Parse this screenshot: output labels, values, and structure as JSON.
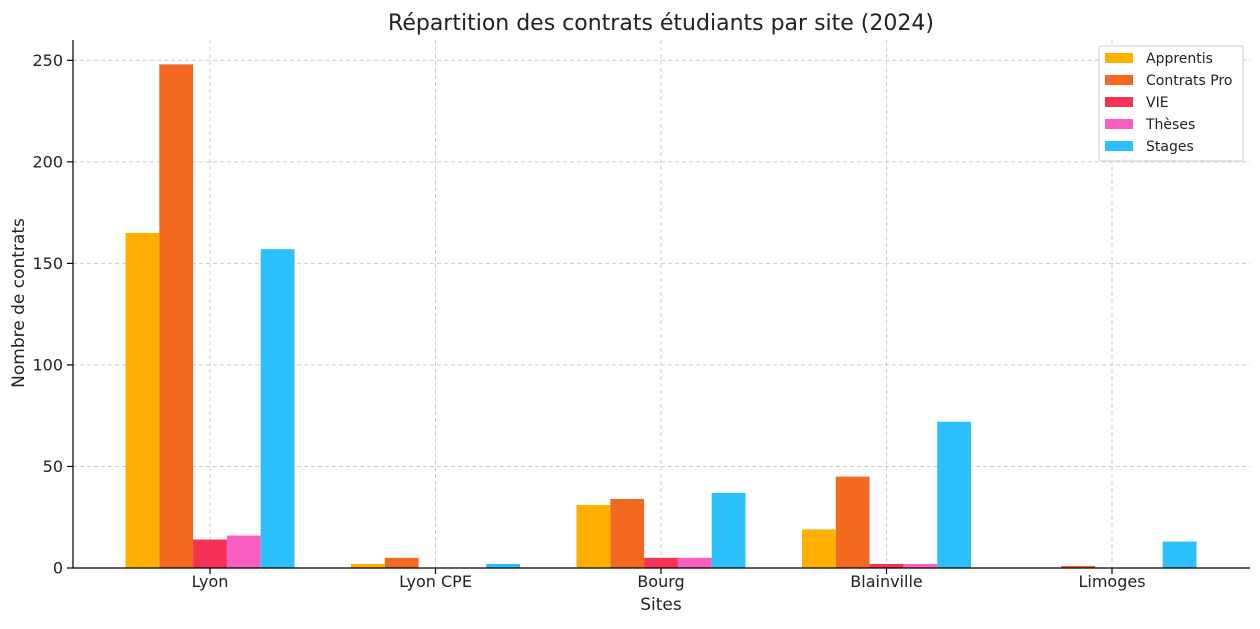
{
  "chart_data": {
    "type": "bar",
    "title": "Répartition des contrats étudiants par site (2024)",
    "xlabel": "Sites",
    "ylabel": "Nombre de contrats",
    "categories": [
      "Lyon",
      "Lyon CPE",
      "Bourg",
      "Blainville",
      "Limoges"
    ],
    "ylim": [
      0,
      260
    ],
    "yticks": [
      0,
      50,
      100,
      150,
      200,
      250
    ],
    "grid": true,
    "legend_position": "top-right",
    "series": [
      {
        "name": "Apprentis",
        "color": "#FFAF00",
        "values": [
          165,
          2,
          31,
          19,
          0
        ]
      },
      {
        "name": "Contrats Pro",
        "color": "#F46920",
        "values": [
          248,
          5,
          34,
          45,
          1
        ]
      },
      {
        "name": "VIE",
        "color": "#F53255",
        "values": [
          14,
          0,
          5,
          2,
          0
        ]
      },
      {
        "name": "Thèses",
        "color": "#F85FC0",
        "values": [
          16,
          0,
          5,
          2,
          0
        ]
      },
      {
        "name": "Stages",
        "color": "#2BBFFC",
        "values": [
          157,
          2,
          37,
          72,
          13
        ]
      }
    ]
  }
}
